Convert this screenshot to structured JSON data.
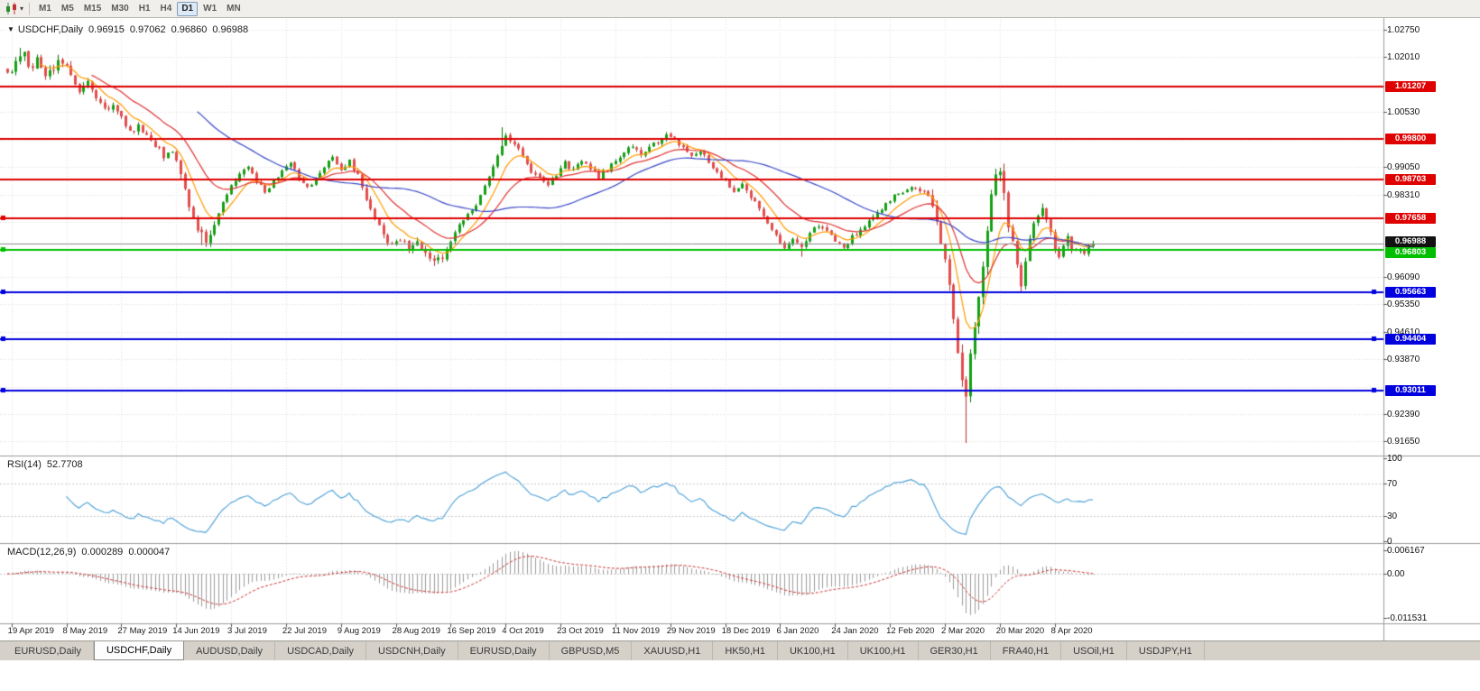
{
  "toolbar": {
    "chart_menu_icon": "candlestick-chart-icon",
    "dropdown_caret": "▾",
    "timeframes": [
      "M1",
      "M5",
      "M15",
      "M30",
      "H1",
      "H4",
      "D1",
      "W1",
      "MN"
    ],
    "active_timeframe": "D1"
  },
  "price_pane": {
    "header": {
      "collapse_icon": "▼",
      "symbol": "USDCHF,Daily",
      "open": "0.96915",
      "high": "0.97062",
      "low": "0.96860",
      "close": "0.96988"
    },
    "bid_tag": {
      "label": "0.96988",
      "price": 0.96988,
      "color": "#111111"
    },
    "axis_labels": [
      {
        "label": "1.02750",
        "value": 1.0275
      },
      {
        "label": "1.02010",
        "value": 1.0201
      },
      {
        "label": "1.00530",
        "value": 1.0053
      },
      {
        "label": "0.99050",
        "value": 0.9905
      },
      {
        "label": "0.98310",
        "value": 0.9831
      },
      {
        "label": "0.96090",
        "value": 0.9609
      },
      {
        "label": "0.95350",
        "value": 0.9535
      },
      {
        "label": "0.94610",
        "value": 0.9461
      },
      {
        "label": "0.93870",
        "value": 0.9387
      },
      {
        "label": "0.92390",
        "value": 0.9239
      },
      {
        "label": "0.91650",
        "value": 0.9165
      }
    ]
  },
  "rsi_pane": {
    "title": "RSI(14)",
    "value": "52.7708",
    "axis": [
      {
        "label": "100",
        "value": 100
      },
      {
        "label": "70",
        "value": 70
      },
      {
        "label": "30",
        "value": 30
      },
      {
        "label": "0",
        "value": 0
      }
    ],
    "levels": [
      70,
      30
    ]
  },
  "macd_pane": {
    "title": "MACD(12,26,9)",
    "main_value": "0.000289",
    "signal_value": "0.000047",
    "axis": [
      {
        "label": "0.006167",
        "value": 0.006167
      },
      {
        "label": "0.00",
        "value": 0
      },
      {
        "label": "-0.011531",
        "value": -0.011531
      }
    ]
  },
  "time_axis": {
    "labels": [
      "19 Apr 2019",
      "8 May 2019",
      "27 May 2019",
      "14 Jun 2019",
      "3 Jul 2019",
      "22 Jul 2019",
      "9 Aug 2019",
      "28 Aug 2019",
      "16 Sep 2019",
      "4 Oct 2019",
      "23 Oct 2019",
      "11 Nov 2019",
      "29 Nov 2019",
      "18 Dec 2019",
      "6 Jan 2020",
      "24 Jan 2020",
      "12 Feb 2020",
      "2 Mar 2020",
      "20 Mar 2020",
      "8 Apr 2020"
    ]
  },
  "tabs": {
    "items": [
      "EURUSD,Daily",
      "USDCHF,Daily",
      "AUDUSD,Daily",
      "USDCAD,Daily",
      "USDCNH,Daily",
      "EURUSD,Daily",
      "GBPUSD,M5",
      "XAUUSD,H1",
      "HK50,H1",
      "UK100,H1",
      "UK100,H1",
      "GER30,H1",
      "FRA40,H1",
      "USOil,H1",
      "USDJPY,H1"
    ],
    "active_index": 1
  },
  "chart_data": {
    "type": "candlestick",
    "symbol": "USDCHF",
    "period": "Daily",
    "last_ohlc": {
      "open": 0.96915,
      "high": 0.97062,
      "low": 0.9686,
      "close": 0.96988
    },
    "bars": 258,
    "bars_per_label": 13,
    "first_label_bar": 1,
    "visible_price_range": [
      0.9127,
      1.0304
    ],
    "price_axis": {
      "tick_start": 1.0275,
      "tick_step": 0.0074,
      "tick_count": 16
    },
    "price_path_anchors": [
      [
        0,
        1.0155
      ],
      [
        2,
        1.0185
      ],
      [
        4,
        1.0205
      ],
      [
        5,
        1.017
      ],
      [
        7,
        1.0195
      ],
      [
        9,
        1.016
      ],
      [
        11,
        1.0175
      ],
      [
        13,
        1.019
      ],
      [
        15,
        1.015
      ],
      [
        17,
        1.0105
      ],
      [
        19,
        1.0135
      ],
      [
        21,
        1.009
      ],
      [
        23,
        1.006
      ],
      [
        25,
        1.0075
      ],
      [
        27,
        1.0035
      ],
      [
        29,
        1.0
      ],
      [
        31,
        1.0015
      ],
      [
        33,
        0.999
      ],
      [
        35,
        0.9965
      ],
      [
        37,
        0.9935
      ],
      [
        39,
        0.995
      ],
      [
        41,
        0.989
      ],
      [
        43,
        0.98
      ],
      [
        45,
        0.9735
      ],
      [
        47,
        0.9705
      ],
      [
        49,
        0.975
      ],
      [
        51,
        0.981
      ],
      [
        53,
        0.9855
      ],
      [
        55,
        0.9885
      ],
      [
        57,
        0.9905
      ],
      [
        59,
        0.987
      ],
      [
        61,
        0.984
      ],
      [
        63,
        0.9865
      ],
      [
        65,
        0.989
      ],
      [
        67,
        0.9915
      ],
      [
        69,
        0.988
      ],
      [
        71,
        0.985
      ],
      [
        73,
        0.9875
      ],
      [
        75,
        0.9905
      ],
      [
        77,
        0.993
      ],
      [
        79,
        0.99
      ],
      [
        81,
        0.992
      ],
      [
        83,
        0.988
      ],
      [
        85,
        0.982
      ],
      [
        87,
        0.976
      ],
      [
        89,
        0.972
      ],
      [
        91,
        0.969
      ],
      [
        93,
        0.9715
      ],
      [
        95,
        0.968
      ],
      [
        97,
        0.97
      ],
      [
        99,
        0.967
      ],
      [
        101,
        0.9645
      ],
      [
        103,
        0.9665
      ],
      [
        105,
        0.97
      ],
      [
        107,
        0.9745
      ],
      [
        109,
        0.9775
      ],
      [
        111,
        0.9805
      ],
      [
        113,
        0.985
      ],
      [
        115,
        0.99
      ],
      [
        117,
        0.996
      ],
      [
        118,
        0.999
      ],
      [
        120,
        0.997
      ],
      [
        122,
        0.993
      ],
      [
        124,
        0.9895
      ],
      [
        126,
        0.987
      ],
      [
        128,
        0.9855
      ],
      [
        130,
        0.9885
      ],
      [
        132,
        0.9915
      ],
      [
        134,
        0.9895
      ],
      [
        136,
        0.9925
      ],
      [
        138,
        0.99
      ],
      [
        140,
        0.988
      ],
      [
        142,
        0.99
      ],
      [
        144,
        0.9925
      ],
      [
        146,
        0.9945
      ],
      [
        148,
        0.996
      ],
      [
        150,
        0.994
      ],
      [
        152,
        0.996
      ],
      [
        154,
        0.9975
      ],
      [
        156,
        0.999
      ],
      [
        158,
        0.998
      ],
      [
        160,
        0.9955
      ],
      [
        162,
        0.993
      ],
      [
        164,
        0.995
      ],
      [
        166,
        0.992
      ],
      [
        168,
        0.989
      ],
      [
        170,
        0.9865
      ],
      [
        172,
        0.984
      ],
      [
        174,
        0.986
      ],
      [
        176,
        0.9825
      ],
      [
        178,
        0.979
      ],
      [
        180,
        0.9755
      ],
      [
        182,
        0.972
      ],
      [
        184,
        0.969
      ],
      [
        186,
        0.971
      ],
      [
        188,
        0.9685
      ],
      [
        190,
        0.9725
      ],
      [
        192,
        0.975
      ],
      [
        194,
        0.973
      ],
      [
        196,
        0.9705
      ],
      [
        198,
        0.969
      ],
      [
        200,
        0.9715
      ],
      [
        202,
        0.9735
      ],
      [
        204,
        0.976
      ],
      [
        206,
        0.978
      ],
      [
        208,
        0.9805
      ],
      [
        210,
        0.9825
      ],
      [
        212,
        0.984
      ],
      [
        214,
        0.985
      ],
      [
        216,
        0.9845
      ],
      [
        218,
        0.983
      ],
      [
        219,
        0.981
      ],
      [
        220,
        0.977
      ],
      [
        221,
        0.9715
      ],
      [
        222,
        0.965
      ],
      [
        223,
        0.957
      ],
      [
        224,
        0.948
      ],
      [
        225,
        0.94
      ],
      [
        226,
        0.934
      ],
      [
        227,
        0.93
      ],
      [
        228,
        0.94
      ],
      [
        229,
        0.948
      ],
      [
        230,
        0.956
      ],
      [
        231,
        0.965
      ],
      [
        232,
        0.975
      ],
      [
        233,
        0.983
      ],
      [
        234,
        0.988
      ],
      [
        235,
        0.9895
      ],
      [
        236,
        0.983
      ],
      [
        237,
        0.976
      ],
      [
        238,
        0.97
      ],
      [
        239,
        0.9645
      ],
      [
        240,
        0.96
      ],
      [
        241,
        0.965
      ],
      [
        242,
        0.97
      ],
      [
        243,
        0.974
      ],
      [
        244,
        0.977
      ],
      [
        245,
        0.979
      ],
      [
        246,
        0.9755
      ],
      [
        247,
        0.9725
      ],
      [
        248,
        0.969
      ],
      [
        249,
        0.9665
      ],
      [
        250,
        0.9685
      ],
      [
        251,
        0.971
      ],
      [
        252,
        0.969
      ],
      [
        253,
        0.967
      ],
      [
        254,
        0.969
      ],
      [
        255,
        0.967
      ],
      [
        256,
        0.9685
      ],
      [
        257,
        0.9699
      ]
    ],
    "volatility_segments": [
      [
        0,
        15,
        0.0026
      ],
      [
        16,
        40,
        0.0018
      ],
      [
        41,
        50,
        0.0024
      ],
      [
        51,
        84,
        0.0015
      ],
      [
        85,
        104,
        0.002
      ],
      [
        105,
        218,
        0.0014
      ],
      [
        219,
        243,
        0.0042
      ],
      [
        244,
        257,
        0.0022
      ]
    ],
    "wick_overrides": {
      "highs": [
        [
          3,
          1.0226
        ],
        [
          117,
          1.0012
        ],
        [
          156,
          0.9999
        ],
        [
          235,
          0.9903
        ]
      ],
      "lows": [
        [
          46,
          0.9694
        ],
        [
          101,
          0.9638
        ],
        [
          188,
          0.9663
        ],
        [
          227,
          0.9161
        ],
        [
          240,
          0.9568
        ]
      ]
    },
    "horizontal_lines": [
      {
        "price": 1.01207,
        "label": "1.01207",
        "color": "#DF0000",
        "width": 2,
        "markers": []
      },
      {
        "price": 0.998,
        "label": "0.99800",
        "color": "#DF0000",
        "width": 2,
        "markers": []
      },
      {
        "price": 0.98703,
        "label": "0.98703",
        "color": "#DF0000",
        "width": 2,
        "markers": []
      },
      {
        "price": 0.97658,
        "label": "0.97658",
        "color": "#DF0000",
        "width": 2,
        "markers": [
          "left"
        ]
      },
      {
        "price": 0.96803,
        "label": "0.96803",
        "color": "#00BE00",
        "width": 2,
        "markers": [
          "left"
        ]
      },
      {
        "price": 0.95663,
        "label": "0.95663",
        "color": "#0000DF",
        "width": 2,
        "markers": [
          "left",
          "right"
        ]
      },
      {
        "price": 0.94404,
        "label": "0.94404",
        "color": "#0000DF",
        "width": 2,
        "markers": [
          "left",
          "right"
        ]
      },
      {
        "price": 0.93011,
        "label": "0.93011",
        "color": "#0000DF",
        "width": 2,
        "markers": [
          "left",
          "right"
        ]
      }
    ],
    "bid_line": {
      "price": 0.96988,
      "color": "#8c8c8c"
    },
    "moving_averages": [
      {
        "type": "ema",
        "period": 8,
        "color": "#FF9C00"
      },
      {
        "type": "ema",
        "period": 20,
        "color": "#E03232"
      },
      {
        "type": "sma",
        "period": 45,
        "color": "#3948C8"
      }
    ],
    "rsi": {
      "period": 14,
      "current": 52.7708,
      "color": "#4AA0D8",
      "range": [
        0,
        100
      ],
      "levels": [
        70,
        30
      ]
    },
    "macd": {
      "fast": 12,
      "slow": 26,
      "signal_period": 9,
      "current_main": 0.000289,
      "current_signal": 4.7e-05,
      "histogram_color": "#9c9c9c",
      "signal_color": "#CC3434",
      "axis_max": 0.0066,
      "axis_min": -0.0122
    },
    "candle_colors": {
      "up_body": "#14A014",
      "up_wick": "#0B760B",
      "down_body": "#E34D4D",
      "down_wick": "#B52F2F"
    }
  }
}
